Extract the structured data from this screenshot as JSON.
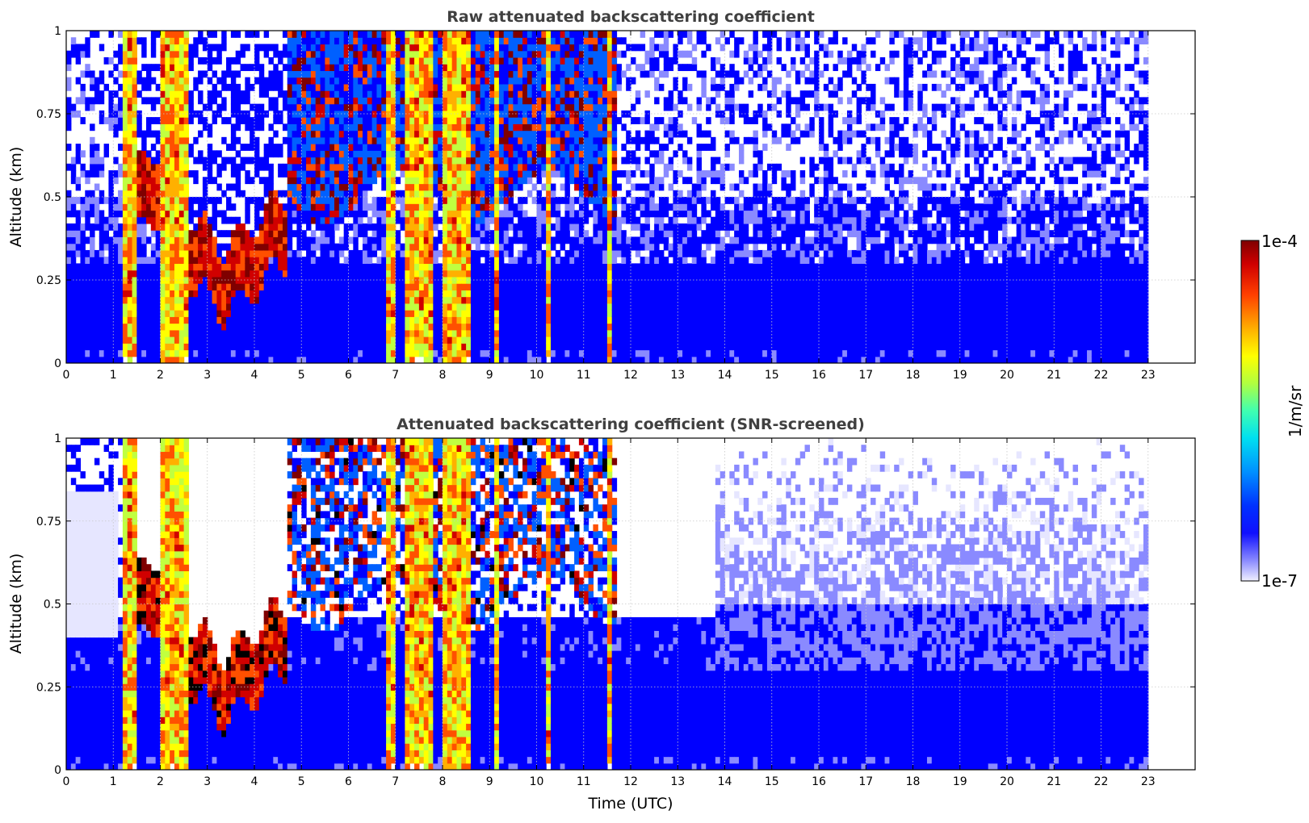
{
  "chart_data": [
    {
      "type": "heatmap",
      "title": "Raw attenuated backscattering coefficient",
      "xlabel": "",
      "ylabel": "Altitude (km)",
      "xlim": [
        0,
        24
      ],
      "ylim": [
        0,
        1
      ],
      "x_ticks": [
        "0",
        "1",
        "2",
        "3",
        "4",
        "5",
        "6",
        "7",
        "8",
        "9",
        "10",
        "11",
        "12",
        "13",
        "14",
        "15",
        "16",
        "17",
        "18",
        "19",
        "20",
        "21",
        "22",
        "23"
      ],
      "y_ticks": [
        "0",
        "0.25",
        "0.5",
        "0.75",
        "1"
      ],
      "grid": true,
      "data_extent_hours": [
        0,
        23
      ],
      "features": {
        "strong_columns_utc": [
          [
            1.2,
            1.5
          ],
          [
            2.0,
            2.6
          ],
          [
            6.8,
            7.0
          ],
          [
            7.2,
            7.8
          ],
          [
            8.0,
            8.6
          ],
          [
            9.1,
            9.15
          ],
          [
            10.2,
            10.3
          ],
          [
            11.5,
            11.6
          ]
        ],
        "cloud_layer_km": {
          "from_utc": 1.5,
          "to_utc": 4.7,
          "base_km": [
            0.45,
            0.3,
            0.15,
            0.2,
            0.3
          ]
        },
        "high_cloud_km": {
          "from_utc": 4.7,
          "to_utc": 11.6,
          "altitude_km": [
            0.55,
            0.95
          ]
        }
      }
    },
    {
      "type": "heatmap",
      "title": "Attenuated backscattering coefficient (SNR-screened)",
      "xlabel": "Time (UTC)",
      "ylabel": "Altitude (km)",
      "xlim": [
        0,
        24
      ],
      "ylim": [
        0,
        1
      ],
      "x_ticks": [
        "0",
        "1",
        "2",
        "3",
        "4",
        "5",
        "6",
        "7",
        "8",
        "9",
        "10",
        "11",
        "12",
        "13",
        "14",
        "15",
        "16",
        "17",
        "18",
        "19",
        "20",
        "21",
        "22",
        "23"
      ],
      "y_ticks": [
        "0",
        "0.25",
        "0.5",
        "0.75",
        "1"
      ],
      "grid": true,
      "data_extent_hours": [
        0,
        23
      ],
      "features": {
        "screened_top_km": {
          "from_utc": 11.6,
          "to_utc": 13.8,
          "altitude_km": 0.45
        },
        "sparse_returns_km": {
          "from_utc": 13.8,
          "to_utc": 23,
          "altitude_km": [
            0.5,
            1.0
          ]
        }
      }
    }
  ],
  "colorbar": {
    "label": "1/m/sr",
    "max_label": "1e-4",
    "min_label": "1e-7",
    "colors": [
      "#e6e6ff",
      "#8a8aff",
      "#0000ff",
      "#0060ff",
      "#00c8ff",
      "#40ffc0",
      "#c0ff40",
      "#ffff00",
      "#ffb000",
      "#ff5000",
      "#d00000",
      "#7f0000"
    ]
  }
}
